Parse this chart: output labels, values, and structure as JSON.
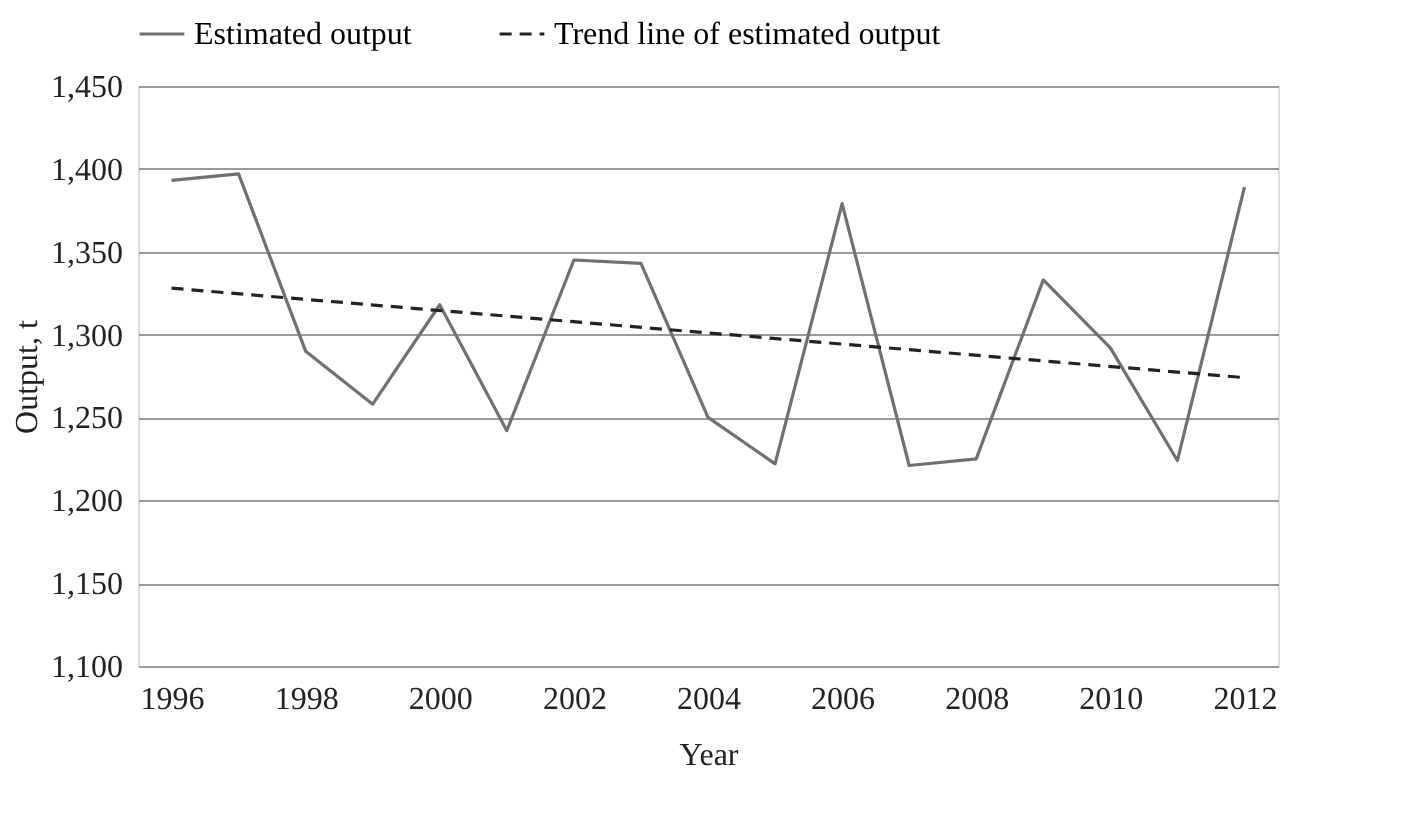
{
  "chart_data": {
    "type": "line",
    "xlabel": "Year",
    "ylabel": "Output, t",
    "xlim": [
      1995.5,
      2012.5
    ],
    "xticks": [
      1996,
      1998,
      2000,
      2002,
      2004,
      2006,
      2008,
      2010,
      2012
    ],
    "ylim": [
      1100,
      1450
    ],
    "yticks": [
      {
        "value": 1100,
        "label": "1,100"
      },
      {
        "value": 1150,
        "label": "1,150"
      },
      {
        "value": 1200,
        "label": "1,200"
      },
      {
        "value": 1250,
        "label": "1,250"
      },
      {
        "value": 1300,
        "label": "1,300"
      },
      {
        "value": 1350,
        "label": "1,350"
      },
      {
        "value": 1400,
        "label": "1,400"
      },
      {
        "value": 1450,
        "label": "1,450"
      }
    ],
    "grid": "y",
    "legend": "top",
    "series": [
      {
        "name": "Estimated output",
        "color": "#707070",
        "line_style": "solid",
        "x": [
          1996,
          1997,
          1998,
          1999,
          2000,
          2001,
          2002,
          2003,
          2004,
          2005,
          2006,
          2007,
          2008,
          2009,
          2010,
          2011,
          2012
        ],
        "values": [
          1393,
          1397,
          1290,
          1258,
          1318,
          1242,
          1345,
          1343,
          1250,
          1222,
          1379,
          1221,
          1225,
          1333,
          1292,
          1224,
          1389
        ]
      },
      {
        "name": "Trend line of estimated output",
        "color": "#222222",
        "line_style": "dashed",
        "x": [
          1996,
          2012
        ],
        "values": [
          1328,
          1274
        ]
      }
    ]
  }
}
